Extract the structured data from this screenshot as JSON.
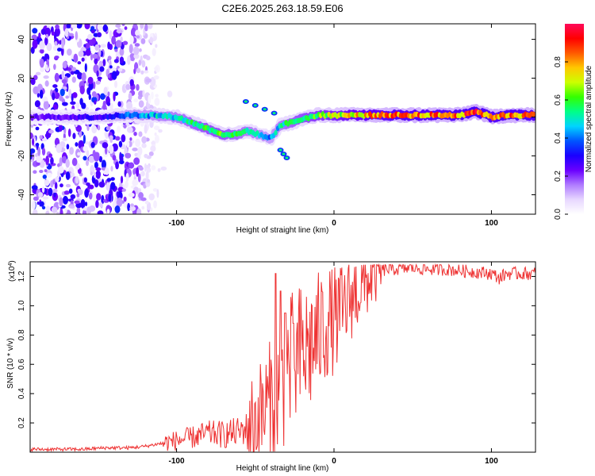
{
  "chart_data": [
    {
      "type": "heatmap",
      "title": "C2E6.2025.263.18.59.E06",
      "xlabel": "Height of straight line (km)",
      "ylabel": "Frequency (Hz)",
      "xlim": [
        -193,
        128
      ],
      "ylim": [
        -50,
        48
      ],
      "xticks": [
        -100,
        0,
        100
      ],
      "xtick_labels": [
        "-100",
        "0",
        "100"
      ],
      "yticks": [
        -40,
        -20,
        0,
        20,
        40
      ],
      "ytick_labels": [
        "-40",
        "-20",
        "0",
        "20",
        "40"
      ],
      "colorbar": {
        "label": "Normalized spectral amplitude",
        "range": [
          0,
          1
        ],
        "ticks": [
          0.0,
          0.2,
          0.4,
          0.6,
          0.8
        ],
        "tick_labels": [
          "0.0",
          "0.2",
          "0.4",
          "0.6",
          "0.8"
        ],
        "colors": [
          "#ffffff",
          "#e7d7ff",
          "#b07cff",
          "#6a00ff",
          "#1a00ff",
          "#0055ff",
          "#00d4ff",
          "#00ff88",
          "#33ff00",
          "#ccff00",
          "#ffc800",
          "#ff5a00",
          "#ff0000",
          "#ff0a5a"
        ]
      },
      "ridge": {
        "x": [
          -193,
          -150,
          -130,
          -115,
          -100,
          -90,
          -80,
          -70,
          -62,
          -55,
          -48,
          -40,
          -34,
          -28,
          -20,
          -10,
          0,
          10,
          20,
          40,
          60,
          80,
          90,
          100,
          110,
          128
        ],
        "y": [
          0,
          0,
          1,
          1,
          0,
          -3,
          -6,
          -9,
          -9,
          -7,
          -9,
          -11,
          -4,
          -3,
          -1,
          1,
          1,
          1,
          1,
          1,
          1,
          1,
          3,
          0,
          1,
          1
        ],
        "amplitude": [
          0.25,
          0.3,
          0.45,
          0.5,
          0.55,
          0.6,
          0.65,
          0.65,
          0.6,
          0.55,
          0.5,
          0.45,
          0.55,
          0.6,
          0.65,
          0.7,
          0.75,
          0.8,
          0.85,
          0.9,
          0.9,
          0.92,
          0.95,
          0.9,
          0.92,
          0.9
        ]
      },
      "side_branches": [
        {
          "x": [
            -56,
            -50,
            -44,
            -38
          ],
          "y": [
            8,
            6,
            4,
            2
          ]
        },
        {
          "x": [
            -34,
            -32,
            -30
          ],
          "y": [
            -17,
            -19,
            -21
          ]
        }
      ],
      "noise_region_x": [
        -193,
        -110
      ]
    },
    {
      "type": "line",
      "xlabel": "Height of straight line (km)",
      "ylabel": "SNR (10 * v/v)",
      "exponent_label": "(x10",
      "exponent_value": "4",
      "exponent_close": ")",
      "xlim": [
        -193,
        128
      ],
      "ylim": [
        0,
        1.3
      ],
      "xticks": [
        -100,
        0,
        100
      ],
      "xtick_labels": [
        "-100",
        "0",
        "100"
      ],
      "yticks": [
        0.2,
        0.4,
        0.6,
        0.8,
        1.0,
        1.2
      ],
      "ytick_labels": [
        "0.2",
        "0.4",
        "0.6",
        "0.8",
        "1.0",
        "1.2"
      ],
      "line_color": "#ee3333",
      "series": [
        {
          "name": "SNR",
          "x": [
            -193,
            -175,
            -160,
            -145,
            -130,
            -120,
            -110,
            -100,
            -90,
            -80,
            -70,
            -60,
            -50,
            -45,
            -40,
            -35,
            -30,
            -25,
            -20,
            -15,
            -10,
            -5,
            0,
            5,
            10,
            15,
            20,
            25,
            30,
            35,
            40,
            50,
            60,
            70,
            80,
            90,
            100,
            105,
            110,
            120,
            128
          ],
          "y": [
            0.02,
            0.02,
            0.02,
            0.03,
            0.03,
            0.04,
            0.06,
            0.08,
            0.1,
            0.13,
            0.12,
            0.14,
            0.2,
            0.28,
            0.35,
            0.45,
            0.55,
            0.6,
            0.68,
            0.72,
            0.8,
            0.88,
            0.9,
            0.95,
            1.05,
            1.1,
            1.15,
            1.2,
            1.24,
            1.25,
            1.25,
            1.26,
            1.25,
            1.25,
            1.24,
            1.23,
            1.22,
            1.19,
            1.22,
            1.22,
            1.22
          ]
        }
      ],
      "spikes": [
        {
          "x": -37,
          "y": 1.22
        },
        {
          "x": -34,
          "y": 1.1
        },
        {
          "x": -31,
          "y": 0.95
        },
        {
          "x": -26,
          "y": 0.88
        }
      ]
    }
  ]
}
